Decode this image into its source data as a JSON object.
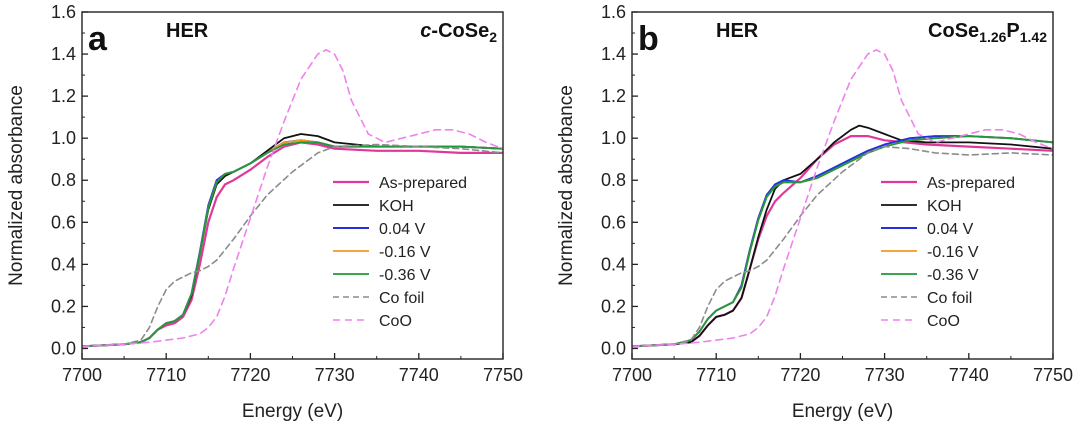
{
  "chart_data": [
    {
      "type": "line",
      "panel": "a",
      "label_left": "HER",
      "label_right_main": "c-CoSe",
      "label_right_sub": "2",
      "xlabel": "Energy (eV)",
      "ylabel": "Normalized absorbance",
      "xlim": [
        7700,
        7750
      ],
      "ylim": [
        -0.05,
        1.6
      ],
      "xticks": [
        7700,
        7710,
        7720,
        7730,
        7740,
        7750
      ],
      "yticks": [
        0.0,
        0.2,
        0.4,
        0.6,
        0.8,
        1.0,
        1.2,
        1.4,
        1.6
      ],
      "series": [
        {
          "name": "As-prepared",
          "color": "#e0389a",
          "dash": "",
          "width": 2.2,
          "x": [
            7700,
            7705,
            7707,
            7708,
            7709,
            7710,
            7711,
            7712,
            7713,
            7714,
            7715,
            7716,
            7717,
            7718,
            7720,
            7722,
            7724,
            7726,
            7728,
            7730,
            7735,
            7740,
            7745,
            7750
          ],
          "y": [
            0.01,
            0.02,
            0.03,
            0.05,
            0.09,
            0.11,
            0.12,
            0.15,
            0.23,
            0.4,
            0.6,
            0.72,
            0.78,
            0.8,
            0.85,
            0.91,
            0.96,
            0.98,
            0.97,
            0.95,
            0.94,
            0.94,
            0.93,
            0.93
          ]
        },
        {
          "name": "KOH",
          "color": "#111111",
          "dash": "",
          "width": 1.8,
          "x": [
            7700,
            7705,
            7707,
            7708,
            7709,
            7710,
            7711,
            7712,
            7713,
            7714,
            7715,
            7716,
            7717,
            7718,
            7720,
            7722,
            7724,
            7726,
            7728,
            7730,
            7735,
            7740,
            7745,
            7750
          ],
          "y": [
            0.01,
            0.02,
            0.03,
            0.05,
            0.09,
            0.12,
            0.13,
            0.16,
            0.25,
            0.45,
            0.66,
            0.78,
            0.82,
            0.84,
            0.88,
            0.94,
            1.0,
            1.02,
            1.01,
            0.98,
            0.96,
            0.96,
            0.96,
            0.95
          ]
        },
        {
          "name": "0.04 V",
          "color": "#2233dd",
          "dash": "",
          "width": 2.0,
          "x": [
            7700,
            7705,
            7707,
            7708,
            7709,
            7710,
            7711,
            7712,
            7713,
            7714,
            7715,
            7716,
            7717,
            7718,
            7720,
            7722,
            7724,
            7726,
            7728,
            7730,
            7735,
            7740,
            7745,
            7750
          ],
          "y": [
            0.01,
            0.02,
            0.03,
            0.05,
            0.09,
            0.12,
            0.13,
            0.16,
            0.26,
            0.46,
            0.68,
            0.8,
            0.83,
            0.84,
            0.88,
            0.93,
            0.98,
            0.99,
            0.98,
            0.96,
            0.96,
            0.96,
            0.96,
            0.95
          ]
        },
        {
          "name": "-0.16 V",
          "color": "#f39a1e",
          "dash": "",
          "width": 1.8,
          "x": [
            7700,
            7705,
            7707,
            7708,
            7709,
            7710,
            7711,
            7712,
            7713,
            7714,
            7715,
            7716,
            7717,
            7718,
            7720,
            7722,
            7724,
            7726,
            7728,
            7730,
            7735,
            7740,
            7745,
            7750
          ],
          "y": [
            0.01,
            0.02,
            0.03,
            0.05,
            0.09,
            0.12,
            0.13,
            0.16,
            0.26,
            0.45,
            0.67,
            0.79,
            0.83,
            0.84,
            0.88,
            0.93,
            0.98,
            0.99,
            0.98,
            0.96,
            0.96,
            0.96,
            0.96,
            0.95
          ]
        },
        {
          "name": "-0.36 V",
          "color": "#1e9a3a",
          "dash": "",
          "width": 1.8,
          "x": [
            7700,
            7705,
            7707,
            7708,
            7709,
            7710,
            7711,
            7712,
            7713,
            7714,
            7715,
            7716,
            7717,
            7718,
            7720,
            7722,
            7724,
            7726,
            7728,
            7730,
            7735,
            7740,
            7745,
            7750
          ],
          "y": [
            0.01,
            0.02,
            0.03,
            0.05,
            0.09,
            0.12,
            0.13,
            0.16,
            0.26,
            0.45,
            0.67,
            0.79,
            0.83,
            0.84,
            0.88,
            0.93,
            0.97,
            0.98,
            0.98,
            0.96,
            0.96,
            0.96,
            0.96,
            0.95
          ]
        },
        {
          "name": "Co foil",
          "color": "#8c8c8c",
          "dash": "6,4",
          "width": 1.6,
          "x": [
            7700,
            7705,
            7707,
            7708,
            7709,
            7710,
            7711,
            7712,
            7713,
            7714,
            7715,
            7716,
            7718,
            7720,
            7722,
            7725,
            7728,
            7730,
            7735,
            7740,
            7745,
            7750
          ],
          "y": [
            0.01,
            0.02,
            0.04,
            0.1,
            0.2,
            0.28,
            0.32,
            0.34,
            0.36,
            0.37,
            0.39,
            0.42,
            0.52,
            0.63,
            0.73,
            0.84,
            0.93,
            0.96,
            0.97,
            0.96,
            0.95,
            0.93
          ]
        },
        {
          "name": "CoO",
          "color": "#ee82ee",
          "dash": "7,5",
          "width": 1.6,
          "x": [
            7700,
            7705,
            7708,
            7710,
            7712,
            7714,
            7715,
            7716,
            7717,
            7718,
            7720,
            7722,
            7724,
            7726,
            7728,
            7729,
            7730,
            7731,
            7732,
            7734,
            7736,
            7738,
            7740,
            7742,
            7744,
            7746,
            7748,
            7750
          ],
          "y": [
            0.01,
            0.02,
            0.03,
            0.04,
            0.05,
            0.07,
            0.1,
            0.15,
            0.25,
            0.38,
            0.62,
            0.86,
            1.08,
            1.28,
            1.4,
            1.42,
            1.4,
            1.32,
            1.18,
            1.02,
            0.98,
            1.0,
            1.02,
            1.04,
            1.04,
            1.02,
            0.98,
            0.95
          ]
        }
      ]
    },
    {
      "type": "line",
      "panel": "b",
      "label_left": "HER",
      "label_right_main": "CoSe",
      "label_right_sub1": "1.26",
      "label_right_mid": "P",
      "label_right_sub2": "1.42",
      "xlabel": "Energy (eV)",
      "ylabel": "Normalized absorbance",
      "xlim": [
        7700,
        7750
      ],
      "ylim": [
        -0.05,
        1.6
      ],
      "xticks": [
        7700,
        7710,
        7720,
        7730,
        7740,
        7750
      ],
      "yticks": [
        0.0,
        0.2,
        0.4,
        0.6,
        0.8,
        1.0,
        1.2,
        1.4,
        1.6
      ],
      "series": [
        {
          "name": "As-prepared",
          "color": "#e0389a",
          "dash": "",
          "width": 2.2,
          "x": [
            7700,
            7705,
            7707,
            7708,
            7709,
            7710,
            7711,
            7712,
            7713,
            7714,
            7715,
            7716,
            7717,
            7718,
            7720,
            7722,
            7724,
            7726,
            7728,
            7730,
            7735,
            7740,
            7745,
            7750
          ],
          "y": [
            0.01,
            0.02,
            0.03,
            0.06,
            0.11,
            0.15,
            0.16,
            0.18,
            0.24,
            0.38,
            0.52,
            0.63,
            0.7,
            0.74,
            0.81,
            0.9,
            0.97,
            1.01,
            1.01,
            0.99,
            0.97,
            0.96,
            0.95,
            0.94
          ]
        },
        {
          "name": "KOH",
          "color": "#111111",
          "dash": "",
          "width": 1.8,
          "x": [
            7700,
            7705,
            7707,
            7708,
            7709,
            7710,
            7711,
            7712,
            7713,
            7714,
            7715,
            7716,
            7717,
            7718,
            7720,
            7722,
            7724,
            7726,
            7727,
            7728,
            7730,
            7732,
            7735,
            7740,
            7745,
            7750
          ],
          "y": [
            0.01,
            0.02,
            0.03,
            0.06,
            0.11,
            0.15,
            0.16,
            0.18,
            0.24,
            0.38,
            0.53,
            0.66,
            0.76,
            0.8,
            0.83,
            0.9,
            0.98,
            1.04,
            1.06,
            1.05,
            1.02,
            0.99,
            0.98,
            0.98,
            0.97,
            0.95
          ]
        },
        {
          "name": "0.04 V",
          "color": "#2233dd",
          "dash": "",
          "width": 2.0,
          "x": [
            7700,
            7705,
            7707,
            7708,
            7709,
            7710,
            7711,
            7712,
            7713,
            7714,
            7715,
            7716,
            7717,
            7718,
            7720,
            7722,
            7724,
            7726,
            7728,
            7730,
            7733,
            7736,
            7740,
            7745,
            7750
          ],
          "y": [
            0.01,
            0.02,
            0.04,
            0.08,
            0.14,
            0.18,
            0.2,
            0.22,
            0.3,
            0.47,
            0.62,
            0.73,
            0.78,
            0.8,
            0.79,
            0.82,
            0.86,
            0.9,
            0.94,
            0.97,
            1.0,
            1.01,
            1.01,
            1.0,
            0.98
          ]
        },
        {
          "name": "-0.16 V",
          "color": "#f39a1e",
          "dash": "",
          "width": 1.8,
          "x": [
            7700,
            7705,
            7707,
            7708,
            7709,
            7710,
            7711,
            7712,
            7713,
            7714,
            7715,
            7716,
            7717,
            7718,
            7720,
            7722,
            7724,
            7726,
            7728,
            7730,
            7733,
            7736,
            7740,
            7745,
            7750
          ],
          "y": [
            0.01,
            0.02,
            0.04,
            0.08,
            0.14,
            0.18,
            0.2,
            0.22,
            0.29,
            0.46,
            0.61,
            0.72,
            0.77,
            0.79,
            0.79,
            0.81,
            0.85,
            0.89,
            0.93,
            0.96,
            0.99,
            1.0,
            1.01,
            1.0,
            0.98
          ]
        },
        {
          "name": "-0.36 V",
          "color": "#1e9a3a",
          "dash": "",
          "width": 1.8,
          "x": [
            7700,
            7705,
            7707,
            7708,
            7709,
            7710,
            7711,
            7712,
            7713,
            7714,
            7715,
            7716,
            7717,
            7718,
            7720,
            7722,
            7724,
            7726,
            7728,
            7730,
            7733,
            7736,
            7740,
            7745,
            7750
          ],
          "y": [
            0.01,
            0.02,
            0.04,
            0.08,
            0.14,
            0.18,
            0.2,
            0.22,
            0.29,
            0.46,
            0.61,
            0.72,
            0.77,
            0.79,
            0.79,
            0.81,
            0.85,
            0.89,
            0.93,
            0.96,
            0.99,
            1.0,
            1.01,
            1.0,
            0.98
          ]
        },
        {
          "name": "Co foil",
          "color": "#8c8c8c",
          "dash": "6,4",
          "width": 1.6,
          "x": [
            7700,
            7705,
            7707,
            7708,
            7709,
            7710,
            7711,
            7712,
            7713,
            7714,
            7715,
            7716,
            7718,
            7720,
            7722,
            7725,
            7728,
            7730,
            7733,
            7736,
            7740,
            7745,
            7750
          ],
          "y": [
            0.01,
            0.02,
            0.04,
            0.1,
            0.2,
            0.28,
            0.32,
            0.34,
            0.36,
            0.37,
            0.39,
            0.42,
            0.52,
            0.63,
            0.73,
            0.84,
            0.93,
            0.96,
            0.95,
            0.93,
            0.92,
            0.93,
            0.92
          ]
        },
        {
          "name": "CoO",
          "color": "#ee82ee",
          "dash": "7,5",
          "width": 1.6,
          "x": [
            7700,
            7705,
            7708,
            7710,
            7712,
            7714,
            7715,
            7716,
            7717,
            7718,
            7720,
            7722,
            7724,
            7726,
            7728,
            7729,
            7730,
            7731,
            7732,
            7734,
            7736,
            7738,
            7740,
            7742,
            7744,
            7746,
            7748,
            7750
          ],
          "y": [
            0.01,
            0.02,
            0.03,
            0.04,
            0.05,
            0.07,
            0.1,
            0.15,
            0.25,
            0.38,
            0.62,
            0.86,
            1.08,
            1.28,
            1.4,
            1.42,
            1.4,
            1.32,
            1.18,
            1.02,
            0.98,
            1.0,
            1.02,
            1.04,
            1.04,
            1.02,
            0.98,
            0.95
          ]
        }
      ]
    }
  ]
}
